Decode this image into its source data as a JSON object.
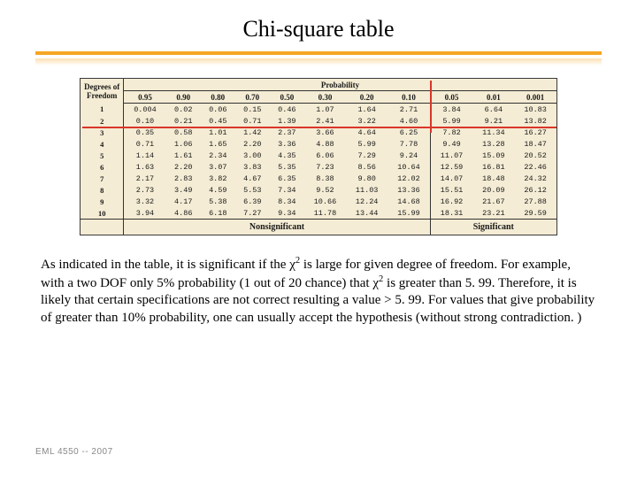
{
  "title": "Chi-square table",
  "table": {
    "dof_header": "Degrees of Freedom",
    "prob_header": "Probability",
    "p_headers": [
      "0.95",
      "0.90",
      "0.80",
      "0.70",
      "0.50",
      "0.30",
      "0.20",
      "0.10",
      "0.05",
      "0.01",
      "0.001"
    ],
    "rows": [
      {
        "dof": "1",
        "v": [
          "0.004",
          "0.02",
          "0.06",
          "0.15",
          "0.46",
          "1.07",
          "1.64",
          "2.71",
          "3.84",
          "6.64",
          "10.83"
        ]
      },
      {
        "dof": "2",
        "v": [
          "0.10",
          "0.21",
          "0.45",
          "0.71",
          "1.39",
          "2.41",
          "3.22",
          "4.60",
          "5.99",
          "9.21",
          "13.82"
        ]
      },
      {
        "dof": "3",
        "v": [
          "0.35",
          "0.58",
          "1.01",
          "1.42",
          "2.37",
          "3.66",
          "4.64",
          "6.25",
          "7.82",
          "11.34",
          "16.27"
        ]
      },
      {
        "dof": "4",
        "v": [
          "0.71",
          "1.06",
          "1.65",
          "2.20",
          "3.36",
          "4.88",
          "5.99",
          "7.78",
          "9.49",
          "13.28",
          "18.47"
        ]
      },
      {
        "dof": "5",
        "v": [
          "1.14",
          "1.61",
          "2.34",
          "3.00",
          "4.35",
          "6.06",
          "7.29",
          "9.24",
          "11.07",
          "15.09",
          "20.52"
        ]
      },
      {
        "dof": "6",
        "v": [
          "1.63",
          "2.20",
          "3.07",
          "3.83",
          "5.35",
          "7.23",
          "8.56",
          "10.64",
          "12.59",
          "16.81",
          "22.46"
        ]
      },
      {
        "dof": "7",
        "v": [
          "2.17",
          "2.83",
          "3.82",
          "4.67",
          "6.35",
          "8.38",
          "9.80",
          "12.02",
          "14.07",
          "18.48",
          "24.32"
        ]
      },
      {
        "dof": "8",
        "v": [
          "2.73",
          "3.49",
          "4.59",
          "5.53",
          "7.34",
          "9.52",
          "11.03",
          "13.36",
          "15.51",
          "20.09",
          "26.12"
        ]
      },
      {
        "dof": "9",
        "v": [
          "3.32",
          "4.17",
          "5.38",
          "6.39",
          "8.34",
          "10.66",
          "12.24",
          "14.68",
          "16.92",
          "21.67",
          "27.88"
        ]
      },
      {
        "dof": "10",
        "v": [
          "3.94",
          "4.86",
          "6.18",
          "7.27",
          "9.34",
          "11.78",
          "13.44",
          "15.99",
          "18.31",
          "23.21",
          "29.59"
        ]
      }
    ],
    "nonsig_label": "Nonsignificant",
    "sig_label": "Significant",
    "sig_boundary_index": 8,
    "highlight": {
      "row_index": 1
    },
    "colors": {
      "paper": "#f4ecd4",
      "border": "#3a3a3a",
      "highlight": "#d9362a"
    }
  },
  "paragraph": {
    "pre1": "As indicated in the table, it is significant if the ",
    "chi": "χ",
    "sup": "2",
    "post1": " is large for given degree of freedom. For example, with a two DOF only 5% probability (1 out of 20 chance) that ",
    "post2": " is greater than 5. 99.  Therefore, it is likely that certain specifications are not correct resulting a value > 5. 99. For values that give probability of greater than 10% probability, one can usually accept the hypothesis (without strong contradiction. )"
  },
  "footer": "EML 4550 -- 2007",
  "style": {
    "accent": "#f5a623",
    "footer_color": "#888888"
  }
}
